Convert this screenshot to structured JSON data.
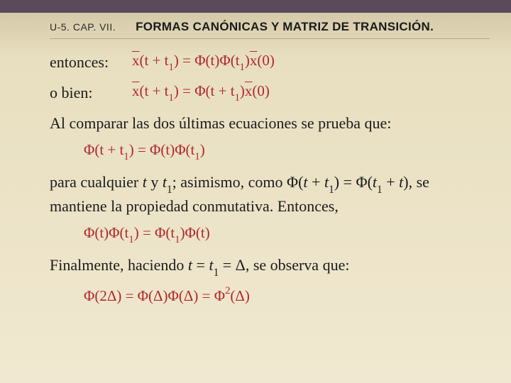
{
  "header": {
    "left": "U-5. CAP. VII.",
    "title": "FORMAS CANÓNICAS Y MATRIZ DE TRANSICIÓN."
  },
  "labels": {
    "entonces": "entonces:",
    "obien": "o bien:"
  },
  "formulas": {
    "eq1_pre": "x",
    "eq1_a": "(t + t",
    "eq1_b": ") = Φ(t)Φ(t",
    "eq1_c": ")",
    "eq1_post": "x",
    "eq1_d": "(0)",
    "eq2_pre": "x",
    "eq2_a": "(t + t",
    "eq2_b": ") = Φ(t + t",
    "eq2_c": ")",
    "eq2_post": "x",
    "eq2_d": "(0)",
    "eq3_a": "Φ(t + t",
    "eq3_b": ") = Φ(t)Φ(t",
    "eq3_c": ")",
    "eq4_a": "Φ(t)Φ(t",
    "eq4_b": ") = Φ(t",
    "eq4_c": ")Φ(t)",
    "eq5": "Φ(2Δ) = Φ(Δ)Φ(Δ) = Φ",
    "eq5_b": "(Δ)"
  },
  "paragraphs": {
    "p1": "Al comparar las dos últimas ecuaciones se prueba que:",
    "p2a": "para cualquier ",
    "p2b": " y ",
    "p2c": "; asimismo, como Φ(",
    "p2d": " + ",
    "p2e": ") = Φ(",
    "p2f": " + ",
    "p2g": "), se mantiene la propiedad conmutativa. Entonces,",
    "p3a": "Finalmente, haciendo ",
    "p3b": " = ",
    "p3c": " = Δ, se observa que:",
    "t": "t",
    "t1": "t",
    "one": "1",
    "two": "2"
  },
  "style": {
    "formula_color": "#b0282c",
    "text_color": "#1a1a1a",
    "bg_top": "#5a4a5a",
    "bg_main": "#e8dfc0"
  }
}
